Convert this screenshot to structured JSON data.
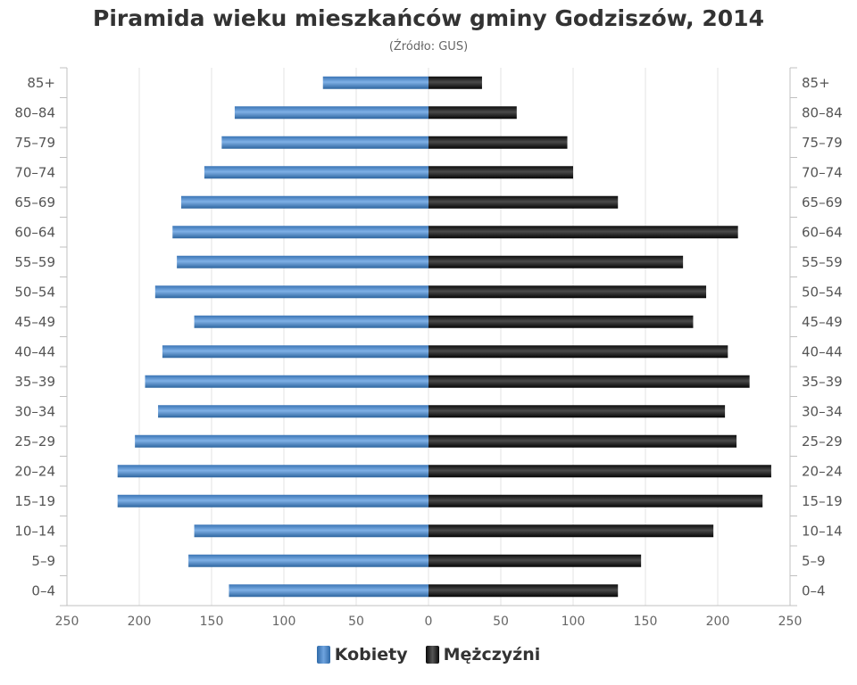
{
  "chart_data": {
    "type": "bar",
    "orientation": "horizontal-pyramid",
    "title": "Piramida wieku mieszkańców gminy Godziszów, 2014",
    "subtitle": "(Źródło: GUS)",
    "categories": [
      "0–4",
      "5–9",
      "10–14",
      "15–19",
      "20–24",
      "25–29",
      "30–34",
      "35–39",
      "40–44",
      "45–49",
      "50–54",
      "55–59",
      "60–64",
      "65–69",
      "70–74",
      "75–79",
      "80–84",
      "85+"
    ],
    "series": [
      {
        "name": "Kobiety",
        "color": "#4a85c6",
        "values": [
          138,
          166,
          162,
          215,
          215,
          203,
          187,
          196,
          184,
          162,
          189,
          174,
          177,
          171,
          155,
          143,
          134,
          73
        ]
      },
      {
        "name": "Mężczyźni",
        "color": "#111111",
        "values": [
          131,
          147,
          197,
          231,
          237,
          213,
          205,
          222,
          207,
          183,
          192,
          176,
          214,
          131,
          100,
          96,
          61,
          37
        ]
      }
    ],
    "xlim": [
      -250,
      250
    ],
    "xticks": [
      "250",
      "200",
      "150",
      "100",
      "50",
      "0",
      "50",
      "100",
      "150",
      "200",
      "250"
    ],
    "grid": true,
    "legend_position": "bottom"
  }
}
